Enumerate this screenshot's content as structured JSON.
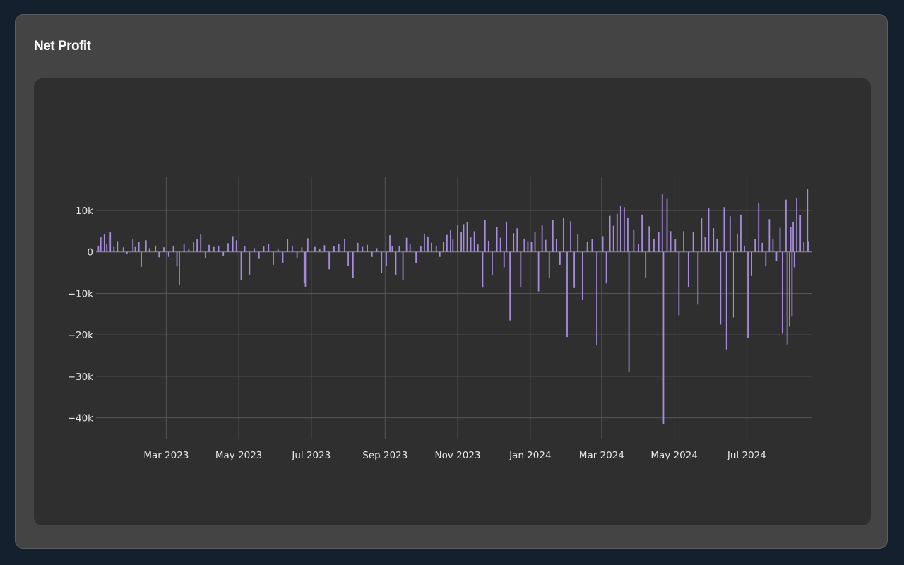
{
  "card": {
    "title": "Net Profit"
  },
  "colors": {
    "page_bg": "#15202e",
    "card_bg": "#444444",
    "panel_bg": "#2f2f2f",
    "bar": "#a78bdc",
    "grid": "#555555",
    "zero_line": "#8a8a8a",
    "tick_text": "#e6e6e6"
  },
  "chart_data": {
    "type": "bar",
    "title": "",
    "xlabel": "",
    "ylabel": "",
    "grid": true,
    "legend": "none",
    "xlim": [
      "2023-01-01",
      "2024-08-25"
    ],
    "ylim": [
      -45000,
      18000
    ],
    "x_ticks": [
      {
        "date": "2023-03-01",
        "label": "Mar 2023"
      },
      {
        "date": "2023-05-01",
        "label": "May 2023"
      },
      {
        "date": "2023-07-01",
        "label": "Jul 2023"
      },
      {
        "date": "2023-09-01",
        "label": "Sep 2023"
      },
      {
        "date": "2023-11-01",
        "label": "Nov 2023"
      },
      {
        "date": "2024-01-01",
        "label": "Jan 2024"
      },
      {
        "date": "2024-03-01",
        "label": "Mar 2024"
      },
      {
        "date": "2024-05-01",
        "label": "May 2024"
      },
      {
        "date": "2024-07-01",
        "label": "Jul 2024"
      }
    ],
    "y_ticks": [
      {
        "value": 10000,
        "label": "10k"
      },
      {
        "value": 0,
        "label": "0"
      },
      {
        "value": -10000,
        "label": "−10k"
      },
      {
        "value": -20000,
        "label": "−20k"
      },
      {
        "value": -30000,
        "label": "−30k"
      },
      {
        "value": -40000,
        "label": "−40k"
      }
    ],
    "series": [
      {
        "name": "",
        "points": [
          {
            "x": "2023-01-03",
            "y": 1500
          },
          {
            "x": "2023-01-05",
            "y": 3500
          },
          {
            "x": "2023-01-08",
            "y": 4200
          },
          {
            "x": "2023-01-10",
            "y": 2000
          },
          {
            "x": "2023-01-13",
            "y": 4700
          },
          {
            "x": "2023-01-16",
            "y": 1200
          },
          {
            "x": "2023-01-19",
            "y": 2600
          },
          {
            "x": "2023-01-24",
            "y": 1100
          },
          {
            "x": "2023-01-27",
            "y": -500
          },
          {
            "x": "2023-02-01",
            "y": 3100
          },
          {
            "x": "2023-02-03",
            "y": 1200
          },
          {
            "x": "2023-02-06",
            "y": 2500
          },
          {
            "x": "2023-02-08",
            "y": -3600
          },
          {
            "x": "2023-02-12",
            "y": 2800
          },
          {
            "x": "2023-02-15",
            "y": 900
          },
          {
            "x": "2023-02-20",
            "y": 1500
          },
          {
            "x": "2023-02-23",
            "y": -1300
          },
          {
            "x": "2023-02-27",
            "y": 1100
          },
          {
            "x": "2023-03-03",
            "y": -1200
          },
          {
            "x": "2023-03-07",
            "y": 1500
          },
          {
            "x": "2023-03-10",
            "y": -3500
          },
          {
            "x": "2023-03-12",
            "y": -8000
          },
          {
            "x": "2023-03-16",
            "y": 1800
          },
          {
            "x": "2023-03-20",
            "y": 800
          },
          {
            "x": "2023-03-24",
            "y": 2400
          },
          {
            "x": "2023-03-27",
            "y": 3000
          },
          {
            "x": "2023-03-30",
            "y": 4300
          },
          {
            "x": "2023-04-03",
            "y": -1400
          },
          {
            "x": "2023-04-06",
            "y": 1700
          },
          {
            "x": "2023-04-10",
            "y": 1200
          },
          {
            "x": "2023-04-14",
            "y": 1500
          },
          {
            "x": "2023-04-18",
            "y": -1000
          },
          {
            "x": "2023-04-22",
            "y": 2100
          },
          {
            "x": "2023-04-26",
            "y": 3800
          },
          {
            "x": "2023-04-29",
            "y": 2800
          },
          {
            "x": "2023-05-03",
            "y": -6800
          },
          {
            "x": "2023-05-06",
            "y": 1400
          },
          {
            "x": "2023-05-10",
            "y": -5600
          },
          {
            "x": "2023-05-14",
            "y": 900
          },
          {
            "x": "2023-05-18",
            "y": -1700
          },
          {
            "x": "2023-05-22",
            "y": 1300
          },
          {
            "x": "2023-05-26",
            "y": 1900
          },
          {
            "x": "2023-05-30",
            "y": -3100
          },
          {
            "x": "2023-06-03",
            "y": 800
          },
          {
            "x": "2023-06-07",
            "y": -2600
          },
          {
            "x": "2023-06-11",
            "y": 3100
          },
          {
            "x": "2023-06-15",
            "y": 1500
          },
          {
            "x": "2023-06-19",
            "y": -1400
          },
          {
            "x": "2023-06-23",
            "y": 1100
          },
          {
            "x": "2023-06-25",
            "y": -7400
          },
          {
            "x": "2023-06-26",
            "y": -8500
          },
          {
            "x": "2023-06-28",
            "y": 3300
          },
          {
            "x": "2023-07-04",
            "y": 1200
          },
          {
            "x": "2023-07-08",
            "y": 800
          },
          {
            "x": "2023-07-12",
            "y": 1600
          },
          {
            "x": "2023-07-16",
            "y": -4200
          },
          {
            "x": "2023-07-20",
            "y": 1400
          },
          {
            "x": "2023-07-24",
            "y": 2000
          },
          {
            "x": "2023-07-29",
            "y": 3200
          },
          {
            "x": "2023-08-01",
            "y": -3300
          },
          {
            "x": "2023-08-05",
            "y": -6300
          },
          {
            "x": "2023-08-09",
            "y": 2200
          },
          {
            "x": "2023-08-13",
            "y": 1200
          },
          {
            "x": "2023-08-17",
            "y": 1700
          },
          {
            "x": "2023-08-21",
            "y": -1200
          },
          {
            "x": "2023-08-25",
            "y": 900
          },
          {
            "x": "2023-08-29",
            "y": -5000
          },
          {
            "x": "2023-09-02",
            "y": -3400
          },
          {
            "x": "2023-09-05",
            "y": 4000
          },
          {
            "x": "2023-09-07",
            "y": 1500
          },
          {
            "x": "2023-09-10",
            "y": -5500
          },
          {
            "x": "2023-09-13",
            "y": 1500
          },
          {
            "x": "2023-09-16",
            "y": -6700
          },
          {
            "x": "2023-09-19",
            "y": 3400
          },
          {
            "x": "2023-09-22",
            "y": 1800
          },
          {
            "x": "2023-09-27",
            "y": -2700
          },
          {
            "x": "2023-10-01",
            "y": 1300
          },
          {
            "x": "2023-10-04",
            "y": 4400
          },
          {
            "x": "2023-10-07",
            "y": 3700
          },
          {
            "x": "2023-10-10",
            "y": 2200
          },
          {
            "x": "2023-10-14",
            "y": 1500
          },
          {
            "x": "2023-10-17",
            "y": -1200
          },
          {
            "x": "2023-10-20",
            "y": 2500
          },
          {
            "x": "2023-10-23",
            "y": 4100
          },
          {
            "x": "2023-10-26",
            "y": 5200
          },
          {
            "x": "2023-10-28",
            "y": 3000
          },
          {
            "x": "2023-11-01",
            "y": 6400
          },
          {
            "x": "2023-11-04",
            "y": 4800
          },
          {
            "x": "2023-11-06",
            "y": 6700
          },
          {
            "x": "2023-11-09",
            "y": 7200
          },
          {
            "x": "2023-11-12",
            "y": 3500
          },
          {
            "x": "2023-11-15",
            "y": 5000
          },
          {
            "x": "2023-11-18",
            "y": 1800
          },
          {
            "x": "2023-11-22",
            "y": -8600
          },
          {
            "x": "2023-11-24",
            "y": 7700
          },
          {
            "x": "2023-11-27",
            "y": 2700
          },
          {
            "x": "2023-11-30",
            "y": -5600
          },
          {
            "x": "2023-12-04",
            "y": 6000
          },
          {
            "x": "2023-12-07",
            "y": 3400
          },
          {
            "x": "2023-12-10",
            "y": -3700
          },
          {
            "x": "2023-12-12",
            "y": 7300
          },
          {
            "x": "2023-12-15",
            "y": -16500
          },
          {
            "x": "2023-12-18",
            "y": 4500
          },
          {
            "x": "2023-12-21",
            "y": 5700
          },
          {
            "x": "2023-12-24",
            "y": -8500
          },
          {
            "x": "2023-12-27",
            "y": 3200
          },
          {
            "x": "2023-12-30",
            "y": 2600
          },
          {
            "x": "2024-01-02",
            "y": 2500
          },
          {
            "x": "2024-01-05",
            "y": 4800
          },
          {
            "x": "2024-01-08",
            "y": -9500
          },
          {
            "x": "2024-01-11",
            "y": 6400
          },
          {
            "x": "2024-01-14",
            "y": 2900
          },
          {
            "x": "2024-01-17",
            "y": -6200
          },
          {
            "x": "2024-01-20",
            "y": 7700
          },
          {
            "x": "2024-01-23",
            "y": 3200
          },
          {
            "x": "2024-01-26",
            "y": -3100
          },
          {
            "x": "2024-01-29",
            "y": 8300
          },
          {
            "x": "2024-02-01",
            "y": -20500
          },
          {
            "x": "2024-02-04",
            "y": 7400
          },
          {
            "x": "2024-02-07",
            "y": -8700
          },
          {
            "x": "2024-02-10",
            "y": 4300
          },
          {
            "x": "2024-02-14",
            "y": -11600
          },
          {
            "x": "2024-02-18",
            "y": 2500
          },
          {
            "x": "2024-02-22",
            "y": 3100
          },
          {
            "x": "2024-02-26",
            "y": -22500
          },
          {
            "x": "2024-03-02",
            "y": 3800
          },
          {
            "x": "2024-03-05",
            "y": -7600
          },
          {
            "x": "2024-03-08",
            "y": 8700
          },
          {
            "x": "2024-03-11",
            "y": 6300
          },
          {
            "x": "2024-03-14",
            "y": 9200
          },
          {
            "x": "2024-03-17",
            "y": 11200
          },
          {
            "x": "2024-03-20",
            "y": 10800
          },
          {
            "x": "2024-03-23",
            "y": 8300
          },
          {
            "x": "2024-03-24",
            "y": -29000
          },
          {
            "x": "2024-03-28",
            "y": 5400
          },
          {
            "x": "2024-04-01",
            "y": 2000
          },
          {
            "x": "2024-04-04",
            "y": 9000
          },
          {
            "x": "2024-04-07",
            "y": -6200
          },
          {
            "x": "2024-04-10",
            "y": 6200
          },
          {
            "x": "2024-04-14",
            "y": 3200
          },
          {
            "x": "2024-04-18",
            "y": 4800
          },
          {
            "x": "2024-04-21",
            "y": 14000
          },
          {
            "x": "2024-04-22",
            "y": -41500
          },
          {
            "x": "2024-04-25",
            "y": 12800
          },
          {
            "x": "2024-04-28",
            "y": 5000
          },
          {
            "x": "2024-05-02",
            "y": 3100
          },
          {
            "x": "2024-05-05",
            "y": -15300
          },
          {
            "x": "2024-05-09",
            "y": 5000
          },
          {
            "x": "2024-05-13",
            "y": -8500
          },
          {
            "x": "2024-05-17",
            "y": 4800
          },
          {
            "x": "2024-05-21",
            "y": -12700
          },
          {
            "x": "2024-05-24",
            "y": 8100
          },
          {
            "x": "2024-05-27",
            "y": 3600
          },
          {
            "x": "2024-05-30",
            "y": 10500
          },
          {
            "x": "2024-06-03",
            "y": 5700
          },
          {
            "x": "2024-06-06",
            "y": 3200
          },
          {
            "x": "2024-06-09",
            "y": -17500
          },
          {
            "x": "2024-06-12",
            "y": 10800
          },
          {
            "x": "2024-06-14",
            "y": -23500
          },
          {
            "x": "2024-06-17",
            "y": 8600
          },
          {
            "x": "2024-06-20",
            "y": -15800
          },
          {
            "x": "2024-06-23",
            "y": 4400
          },
          {
            "x": "2024-06-26",
            "y": 9000
          },
          {
            "x": "2024-06-29",
            "y": 1400
          },
          {
            "x": "2024-07-02",
            "y": -20800
          },
          {
            "x": "2024-07-05",
            "y": -5800
          },
          {
            "x": "2024-07-08",
            "y": 3100
          },
          {
            "x": "2024-07-11",
            "y": 11800
          },
          {
            "x": "2024-07-14",
            "y": 2200
          },
          {
            "x": "2024-07-17",
            "y": -3500
          },
          {
            "x": "2024-07-20",
            "y": 7900
          },
          {
            "x": "2024-07-23",
            "y": 3200
          },
          {
            "x": "2024-07-26",
            "y": -2100
          },
          {
            "x": "2024-07-29",
            "y": 5800
          },
          {
            "x": "2024-07-31",
            "y": -19700
          },
          {
            "x": "2024-08-03",
            "y": 12600
          },
          {
            "x": "2024-08-04",
            "y": -22300
          },
          {
            "x": "2024-08-06",
            "y": -18000
          },
          {
            "x": "2024-08-07",
            "y": 6000
          },
          {
            "x": "2024-08-08",
            "y": -15600
          },
          {
            "x": "2024-08-09",
            "y": 7300
          },
          {
            "x": "2024-08-10",
            "y": -3700
          },
          {
            "x": "2024-08-12",
            "y": 12900
          },
          {
            "x": "2024-08-15",
            "y": 8900
          },
          {
            "x": "2024-08-18",
            "y": 2400
          },
          {
            "x": "2024-08-21",
            "y": 15200
          },
          {
            "x": "2024-08-22",
            "y": 2600
          }
        ]
      }
    ]
  }
}
